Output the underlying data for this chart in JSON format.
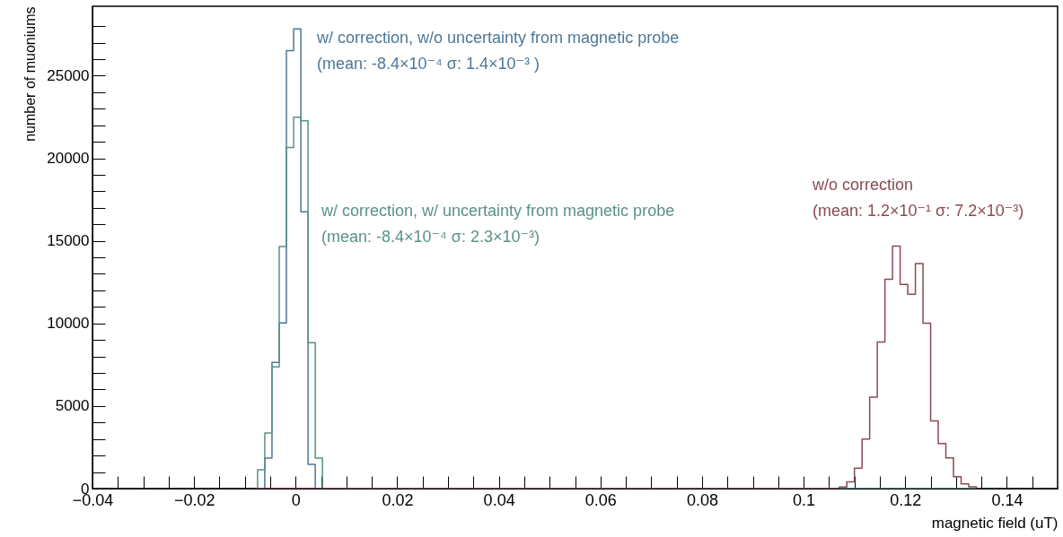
{
  "chart_data": {
    "type": "histogram",
    "xlabel": "magnetic field (uT)",
    "ylabel": "number of muoniums",
    "xlim": [
      -0.04,
      0.15
    ],
    "ylim": [
      0,
      29200
    ],
    "xticks": [
      {
        "value": -0.04,
        "label": "−0.04"
      },
      {
        "value": -0.035,
        "label": null
      },
      {
        "value": -0.03,
        "label": null
      },
      {
        "value": -0.025,
        "label": null
      },
      {
        "value": -0.02,
        "label": "−0.02"
      },
      {
        "value": -0.015,
        "label": null
      },
      {
        "value": -0.01,
        "label": null
      },
      {
        "value": -0.005,
        "label": null
      },
      0,
      {
        "value": 0.005,
        "label": null
      },
      {
        "value": 0.01,
        "label": null
      },
      {
        "value": 0.015,
        "label": null
      },
      0.02,
      {
        "value": 0.025,
        "label": null
      },
      {
        "value": 0.03,
        "label": null
      },
      {
        "value": 0.035,
        "label": null
      },
      0.04,
      {
        "value": 0.045,
        "label": null
      },
      {
        "value": 0.05,
        "label": null
      },
      {
        "value": 0.055,
        "label": null
      },
      0.06,
      {
        "value": 0.065,
        "label": null
      },
      {
        "value": 0.07,
        "label": null
      },
      {
        "value": 0.075,
        "label": null
      },
      0.08,
      {
        "value": 0.085,
        "label": null
      },
      {
        "value": 0.09,
        "label": null
      },
      {
        "value": 0.095,
        "label": null
      },
      0.1,
      {
        "value": 0.105,
        "label": null
      },
      {
        "value": 0.11,
        "label": null
      },
      {
        "value": 0.115,
        "label": null
      },
      0.12,
      {
        "value": 0.125,
        "label": null
      },
      {
        "value": 0.13,
        "label": null
      },
      {
        "value": 0.135,
        "label": null
      },
      0.14,
      {
        "value": 0.145,
        "label": null
      }
    ],
    "yticks": [
      0,
      {
        "value": 1000,
        "label": null
      },
      {
        "value": 2000,
        "label": null
      },
      {
        "value": 3000,
        "label": null
      },
      {
        "value": 4000,
        "label": null
      },
      5000,
      {
        "value": 6000,
        "label": null
      },
      {
        "value": 7000,
        "label": null
      },
      {
        "value": 8000,
        "label": null
      },
      {
        "value": 9000,
        "label": null
      },
      10000,
      {
        "value": 11000,
        "label": null
      },
      {
        "value": 12000,
        "label": null
      },
      {
        "value": 13000,
        "label": null
      },
      {
        "value": 14000,
        "label": null
      },
      15000,
      {
        "value": 16000,
        "label": null
      },
      {
        "value": 17000,
        "label": null
      },
      {
        "value": 18000,
        "label": null
      },
      {
        "value": 19000,
        "label": null
      },
      20000,
      {
        "value": 21000,
        "label": null
      },
      {
        "value": 22000,
        "label": null
      },
      {
        "value": 23000,
        "label": null
      },
      {
        "value": 24000,
        "label": null
      },
      25000,
      {
        "value": 26000,
        "label": null
      },
      {
        "value": 27000,
        "label": null
      },
      {
        "value": 28000,
        "label": null
      }
    ],
    "bins": [
      -0.0075,
      -0.00608,
      -0.00466,
      -0.00324,
      -0.00182,
      -0.0004,
      0.00102,
      0.00244,
      0.00386,
      0.00528,
      0.107,
      0.1085,
      0.11,
      0.1115,
      0.113,
      0.1145,
      0.116,
      0.1175,
      0.119,
      0.1205,
      0.122,
      0.1235,
      0.125,
      0.1265,
      0.128,
      0.1295,
      0.131,
      0.1325,
      0.134
    ],
    "series": [
      {
        "name": "w/ correction, w/o uncertainty from magnetic probe",
        "color": "#4d7799",
        "values": [
          0,
          1850,
          7640,
          10030,
          26520,
          27830,
          16760,
          1460,
          0,
          0,
          0,
          0,
          0,
          0,
          0,
          0,
          0,
          0,
          0,
          0,
          0,
          0,
          0,
          0,
          0,
          0,
          0,
          0
        ]
      },
      {
        "name": "w/ correction, w/ uncertainty from magnetic probe",
        "color": "#5a9189",
        "values": [
          1140,
          3370,
          7370,
          14650,
          20650,
          22480,
          22270,
          8830,
          1850,
          0,
          0,
          0,
          0,
          0,
          0,
          0,
          0,
          0,
          0,
          0,
          0,
          0,
          0,
          0,
          0,
          0,
          0,
          0
        ]
      },
      {
        "name": "w/o correction",
        "color": "#8a4a52",
        "values": [
          0,
          0,
          0,
          0,
          0,
          0,
          0,
          0,
          0,
          0,
          100,
          410,
          1240,
          3000,
          5540,
          8870,
          12670,
          14680,
          12360,
          11770,
          13620,
          10010,
          4100,
          2730,
          1860,
          720,
          290,
          110
        ]
      }
    ],
    "annotations": [
      "(mean: -8.4×10⁻⁴  σ: 1.4×10⁻³ )",
      "(mean: -8.4×10⁻⁴  σ: 2.3×10⁻³)",
      "(mean: 1.2×10⁻¹  σ: 7.2×10⁻³)"
    ]
  }
}
